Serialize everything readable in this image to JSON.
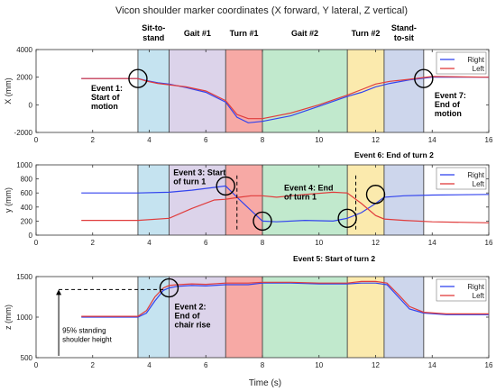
{
  "figure": {
    "title": "Vicon shoulder marker coordinates (X forward, Y lateral, Z vertical)",
    "xlabel": "Time (s)"
  },
  "phases": [
    {
      "label_lines": [
        "Sit-to-",
        "stand"
      ],
      "start": 3.6,
      "end": 4.7,
      "color": "#c5e3f0"
    },
    {
      "label_lines": [
        "Gait #1"
      ],
      "start": 4.7,
      "end": 6.7,
      "color": "#dcd3ea"
    },
    {
      "label_lines": [
        "Turn #1"
      ],
      "start": 6.7,
      "end": 8.0,
      "color": "#f7a9a5"
    },
    {
      "label_lines": [
        "Gait #2"
      ],
      "start": 8.0,
      "end": 11.0,
      "color": "#c1e9cd"
    },
    {
      "label_lines": [
        "Turn #2"
      ],
      "start": 11.0,
      "end": 12.3,
      "color": "#fbeaad"
    },
    {
      "label_lines": [
        "Stand-",
        "to-sit"
      ],
      "start": 12.3,
      "end": 13.7,
      "color": "#cdd6ec"
    }
  ],
  "colors": {
    "right": "#3344ee",
    "left": "#e03c3c",
    "event_line": "#000000"
  },
  "top_annotations": {
    "event6": "Event 6: End of turn 2",
    "event5": "Event 5: Start of turn 2"
  },
  "chart_data": [
    {
      "type": "line",
      "panel": "X",
      "ylabel": "X (mm)",
      "xlim": [
        0,
        16
      ],
      "ylim": [
        -2000,
        4000
      ],
      "xticks": [
        0,
        2,
        4,
        6,
        8,
        10,
        12,
        14,
        16
      ],
      "yticks": [
        -2000,
        0,
        2000,
        4000
      ],
      "legend": "top-right",
      "series": [
        {
          "name": "Right",
          "color": "#3344ee",
          "points": [
            [
              1.6,
              1900
            ],
            [
              3.6,
              1900
            ],
            [
              3.9,
              1750
            ],
            [
              4.3,
              1600
            ],
            [
              4.7,
              1500
            ],
            [
              5.3,
              1250
            ],
            [
              6,
              900
            ],
            [
              6.7,
              200
            ],
            [
              7.1,
              -900
            ],
            [
              7.5,
              -1300
            ],
            [
              8,
              -1200
            ],
            [
              9,
              -800
            ],
            [
              10,
              -100
            ],
            [
              11,
              600
            ],
            [
              11.5,
              900
            ],
            [
              12,
              1300
            ],
            [
              12.5,
              1550
            ],
            [
              13.2,
              1800
            ],
            [
              14,
              2000
            ],
            [
              16,
              2000
            ]
          ]
        },
        {
          "name": "Left",
          "color": "#e03c3c",
          "points": [
            [
              1.6,
              1900
            ],
            [
              3.6,
              1900
            ],
            [
              3.9,
              1720
            ],
            [
              4.3,
              1550
            ],
            [
              4.7,
              1450
            ],
            [
              5.3,
              1300
            ],
            [
              6,
              1000
            ],
            [
              6.7,
              300
            ],
            [
              7.1,
              -700
            ],
            [
              7.5,
              -1000
            ],
            [
              8,
              -1000
            ],
            [
              9,
              -600
            ],
            [
              10,
              0
            ],
            [
              11,
              700
            ],
            [
              11.5,
              1100
            ],
            [
              12,
              1500
            ],
            [
              12.5,
              1700
            ],
            [
              13.2,
              1850
            ],
            [
              14,
              2050
            ],
            [
              16,
              2000
            ]
          ]
        }
      ],
      "annotations": [
        {
          "lines": [
            "Event 1:",
            "Start of",
            "motion"
          ],
          "x": 3.6,
          "y": 1900
        },
        {
          "lines": [
            "Event 7:",
            "End of",
            "motion"
          ],
          "x": 13.7,
          "y": 1900
        }
      ]
    },
    {
      "type": "line",
      "panel": "Y",
      "ylabel": "y (mm)",
      "xlim": [
        0,
        16
      ],
      "ylim": [
        0,
        1000
      ],
      "xticks": [
        0,
        2,
        4,
        6,
        8,
        10,
        12,
        14,
        16
      ],
      "yticks": [
        0,
        200,
        400,
        600,
        800,
        1000
      ],
      "legend": "top-right",
      "series": [
        {
          "name": "Right",
          "color": "#3344ee",
          "points": [
            [
              1.6,
              600
            ],
            [
              3.6,
              600
            ],
            [
              4.7,
              610
            ],
            [
              5.5,
              640
            ],
            [
              6.3,
              680
            ],
            [
              6.7,
              700
            ],
            [
              7.2,
              500
            ],
            [
              7.6,
              350
            ],
            [
              8,
              200
            ],
            [
              8.5,
              190
            ],
            [
              9.5,
              210
            ],
            [
              10.5,
              200
            ],
            [
              11,
              240
            ],
            [
              11.5,
              320
            ],
            [
              12,
              450
            ],
            [
              12.3,
              540
            ],
            [
              13,
              560
            ],
            [
              14,
              570
            ],
            [
              16,
              580
            ]
          ]
        },
        {
          "name": "Left",
          "color": "#e03c3c",
          "points": [
            [
              1.6,
              210
            ],
            [
              3.6,
              210
            ],
            [
              4.7,
              240
            ],
            [
              5.5,
              380
            ],
            [
              6.3,
              500
            ],
            [
              6.7,
              510
            ],
            [
              7.2,
              540
            ],
            [
              7.6,
              560
            ],
            [
              8,
              560
            ],
            [
              8.5,
              540
            ],
            [
              9.5,
              580
            ],
            [
              10.5,
              610
            ],
            [
              11,
              600
            ],
            [
              11.5,
              450
            ],
            [
              12,
              280
            ],
            [
              12.3,
              230
            ],
            [
              13,
              210
            ],
            [
              14,
              190
            ],
            [
              16,
              175
            ]
          ]
        }
      ],
      "event_markers": [
        7.1,
        11.3
      ],
      "annotations": [
        {
          "lines": [
            "Event 3: Start",
            "of turn 1"
          ],
          "x": 6.7,
          "y": 700
        },
        {
          "lines": [
            "Event 4: End",
            "of turn 1"
          ],
          "x": 8.0,
          "y": 200
        },
        {
          "lines": [
            ""
          ],
          "x": 11.0,
          "y": 240
        },
        {
          "lines": [
            ""
          ],
          "x": 12.0,
          "y": 580
        }
      ]
    },
    {
      "type": "line",
      "panel": "Z",
      "ylabel": "z (mm)",
      "xlim": [
        0,
        16
      ],
      "ylim": [
        500,
        1500
      ],
      "xticks": [
        0,
        2,
        4,
        6,
        8,
        10,
        12,
        14,
        16
      ],
      "yticks": [
        500,
        1000,
        1500
      ],
      "legend": "top-right",
      "series": [
        {
          "name": "Right",
          "color": "#3344ee",
          "points": [
            [
              1.6,
              1000
            ],
            [
              3.6,
              1000
            ],
            [
              3.9,
              1050
            ],
            [
              4.2,
              1200
            ],
            [
              4.5,
              1330
            ],
            [
              4.7,
              1360
            ],
            [
              5,
              1380
            ],
            [
              5.5,
              1390
            ],
            [
              6,
              1385
            ],
            [
              6.7,
              1400
            ],
            [
              7.5,
              1400
            ],
            [
              8,
              1420
            ],
            [
              9,
              1420
            ],
            [
              10,
              1410
            ],
            [
              11,
              1410
            ],
            [
              11.5,
              1420
            ],
            [
              12,
              1420
            ],
            [
              12.4,
              1400
            ],
            [
              12.8,
              1250
            ],
            [
              13.2,
              1100
            ],
            [
              13.7,
              1050
            ],
            [
              14.5,
              1030
            ],
            [
              16,
              1030
            ]
          ]
        },
        {
          "name": "Left",
          "color": "#e03c3c",
          "points": [
            [
              1.6,
              1010
            ],
            [
              3.6,
              1010
            ],
            [
              3.9,
              1080
            ],
            [
              4.2,
              1250
            ],
            [
              4.5,
              1360
            ],
            [
              4.7,
              1390
            ],
            [
              5,
              1400
            ],
            [
              5.5,
              1410
            ],
            [
              6,
              1405
            ],
            [
              6.7,
              1420
            ],
            [
              7.5,
              1420
            ],
            [
              8,
              1430
            ],
            [
              9,
              1430
            ],
            [
              10,
              1420
            ],
            [
              11,
              1420
            ],
            [
              11.5,
              1440
            ],
            [
              12,
              1440
            ],
            [
              12.4,
              1420
            ],
            [
              12.8,
              1280
            ],
            [
              13.2,
              1130
            ],
            [
              13.7,
              1060
            ],
            [
              14.5,
              1040
            ],
            [
              16,
              1040
            ]
          ]
        }
      ],
      "annotations": [
        {
          "lines": [
            "Event 2:",
            "End of",
            "chair rise"
          ],
          "x": 4.7,
          "y": 1360
        },
        {
          "lines": [
            "95% standing",
            "shoulder height"
          ],
          "x": 0.8,
          "y": 1340
        }
      ]
    }
  ]
}
